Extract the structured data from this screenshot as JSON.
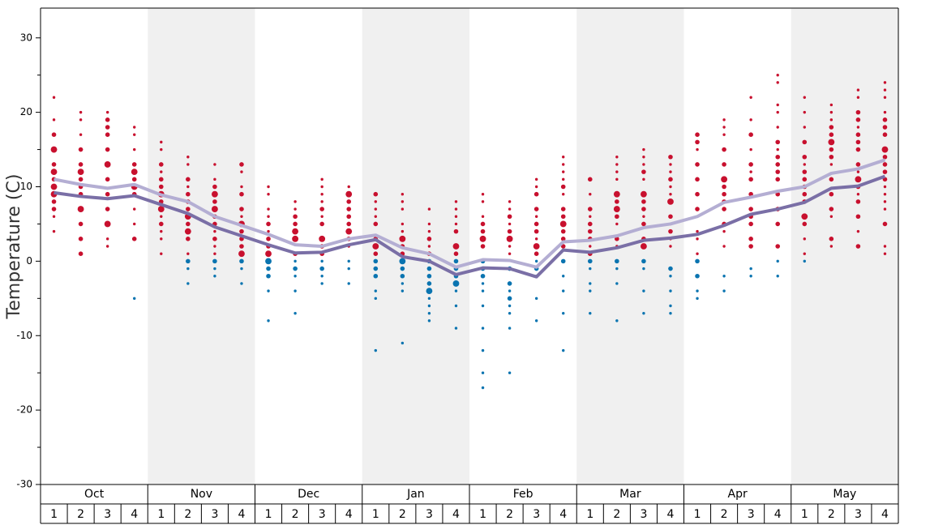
{
  "chart_data": {
    "type": "dot-distribution",
    "y_label": "Temperature (C)",
    "ylim": [
      -30,
      34
    ],
    "yticks": [
      -30,
      -20,
      -10,
      0,
      10,
      20,
      30
    ],
    "yticks_minor": [
      -25,
      -15,
      -5,
      5,
      15,
      25
    ],
    "months": [
      "Oct",
      "Nov",
      "Dec",
      "Jan",
      "Feb",
      "Mar",
      "Apr",
      "May"
    ],
    "weeks": [
      "1",
      "2",
      "3",
      "4"
    ],
    "shade_color": "#f0f0f0",
    "warm_color": "#c8102e",
    "cold_color": "#0a74b0",
    "lines": [
      {
        "color": "#b4aed3",
        "values": [
          11.0,
          10.3,
          9.8,
          10.3,
          8.9,
          8.0,
          6.0,
          4.8,
          3.6,
          2.2,
          2.0,
          3.0,
          3.5,
          1.8,
          1.0,
          -0.8,
          0.2,
          0.1,
          -0.8,
          2.6,
          2.8,
          3.4,
          4.5,
          5.0,
          6.0,
          7.9,
          8.6,
          9.4,
          10.0,
          11.8,
          12.4,
          13.6
        ]
      },
      {
        "color": "#7a6fa6",
        "values": [
          9.2,
          8.7,
          8.4,
          8.8,
          7.6,
          6.4,
          4.6,
          3.4,
          2.2,
          1.1,
          1.2,
          2.2,
          2.9,
          0.6,
          0.0,
          -1.8,
          -0.9,
          -1.0,
          -2.1,
          1.5,
          1.2,
          1.8,
          2.8,
          3.1,
          3.6,
          4.8,
          6.3,
          7.0,
          7.9,
          9.8,
          10.1,
          11.4
        ]
      }
    ],
    "dots": [
      {
        "temps": [
          22,
          19,
          17,
          15,
          13,
          12,
          11,
          10,
          9,
          8,
          7,
          6,
          4
        ],
        "sizes": [
          1,
          1,
          2,
          3,
          2,
          3,
          2,
          3,
          3,
          2,
          2,
          1,
          1
        ]
      },
      {
        "temps": [
          20,
          19,
          17,
          15,
          13,
          12,
          11,
          10,
          9,
          7,
          5,
          3,
          1
        ],
        "sizes": [
          1,
          1,
          1,
          2,
          2,
          3,
          2,
          2,
          2,
          3,
          2,
          2,
          2
        ]
      },
      {
        "temps": [
          20,
          19,
          18,
          17,
          15,
          13,
          11,
          9,
          7,
          5,
          3,
          2
        ],
        "sizes": [
          1,
          2,
          2,
          2,
          2,
          3,
          2,
          2,
          2,
          3,
          1,
          1
        ]
      },
      {
        "temps": [
          18,
          17,
          15,
          13,
          12,
          11,
          10,
          9,
          7,
          5,
          3,
          -5
        ],
        "sizes": [
          1,
          1,
          1,
          2,
          3,
          2,
          3,
          2,
          1,
          1,
          2,
          1
        ]
      },
      {
        "temps": [
          16,
          15,
          13,
          12,
          11,
          10,
          9,
          8,
          7,
          6,
          5,
          4,
          3,
          1
        ],
        "sizes": [
          1,
          1,
          2,
          1,
          2,
          2,
          3,
          2,
          3,
          1,
          2,
          1,
          1,
          1
        ]
      },
      {
        "temps": [
          14,
          13,
          11,
          10,
          9,
          8,
          7,
          6,
          5,
          4,
          3,
          1,
          0,
          -1,
          -3
        ],
        "sizes": [
          1,
          1,
          2,
          1,
          2,
          2,
          2,
          3,
          2,
          3,
          2,
          1,
          2,
          1,
          1
        ]
      },
      {
        "temps": [
          13,
          11,
          10,
          9,
          8,
          7,
          6,
          5,
          4,
          3,
          2,
          1,
          0,
          -1,
          -2
        ],
        "sizes": [
          1,
          1,
          2,
          3,
          2,
          3,
          2,
          2,
          1,
          2,
          1,
          1,
          2,
          1,
          1
        ]
      },
      {
        "temps": [
          13,
          12,
          10,
          9,
          7,
          6,
          5,
          4,
          3,
          2,
          1,
          0,
          -1,
          -3
        ],
        "sizes": [
          2,
          1,
          1,
          2,
          2,
          1,
          3,
          2,
          2,
          2,
          3,
          2,
          1,
          1
        ]
      },
      {
        "temps": [
          10,
          9,
          7,
          6,
          5,
          4,
          3,
          2,
          1,
          0,
          -1,
          -2,
          -4,
          -8
        ],
        "sizes": [
          1,
          1,
          1,
          1,
          2,
          1,
          2,
          2,
          3,
          3,
          2,
          2,
          1,
          1
        ]
      },
      {
        "temps": [
          8,
          7,
          6,
          5,
          4,
          3,
          1,
          0,
          -1,
          -2,
          -4,
          -7
        ],
        "sizes": [
          1,
          1,
          2,
          2,
          3,
          3,
          2,
          1,
          2,
          1,
          1,
          1
        ]
      },
      {
        "temps": [
          11,
          10,
          9,
          8,
          7,
          6,
          5,
          3,
          2,
          1,
          0,
          -1,
          -2,
          -3
        ],
        "sizes": [
          1,
          1,
          1,
          1,
          2,
          1,
          2,
          3,
          2,
          2,
          1,
          2,
          1,
          1
        ]
      },
      {
        "temps": [
          10,
          9,
          8,
          7,
          6,
          5,
          4,
          3,
          2,
          0,
          -1,
          -3
        ],
        "sizes": [
          1,
          3,
          2,
          2,
          2,
          2,
          3,
          2,
          1,
          1,
          1,
          1
        ]
      },
      {
        "temps": [
          9,
          8,
          7,
          6,
          5,
          3,
          2,
          1,
          0,
          -1,
          -2,
          -4,
          -5,
          -12
        ],
        "sizes": [
          2,
          1,
          1,
          1,
          2,
          2,
          3,
          2,
          2,
          2,
          2,
          1,
          1,
          1
        ]
      },
      {
        "temps": [
          9,
          8,
          7,
          5,
          4,
          3,
          2,
          1,
          0,
          -1,
          -2,
          -3,
          -4,
          -11
        ],
        "sizes": [
          1,
          1,
          1,
          1,
          1,
          3,
          2,
          2,
          3,
          2,
          2,
          1,
          1,
          1
        ]
      },
      {
        "temps": [
          7,
          5,
          4,
          3,
          2,
          1,
          0,
          -1,
          -2,
          -3,
          -4,
          -5,
          -6,
          -7,
          -8
        ],
        "sizes": [
          1,
          1,
          1,
          2,
          1,
          2,
          2,
          2,
          2,
          2,
          3,
          1,
          1,
          1,
          1
        ]
      },
      {
        "temps": [
          8,
          7,
          6,
          5,
          4,
          2,
          1,
          0,
          -1,
          -2,
          -3,
          -4,
          -6,
          -9
        ],
        "sizes": [
          1,
          1,
          1,
          1,
          2,
          3,
          2,
          2,
          2,
          2,
          3,
          1,
          1,
          1
        ]
      },
      {
        "temps": [
          9,
          8,
          6,
          5,
          4,
          3,
          2,
          0,
          -1,
          -2,
          -3,
          -4,
          -6,
          -9,
          -12,
          -15,
          -17
        ],
        "sizes": [
          1,
          1,
          1,
          2,
          2,
          3,
          2,
          2,
          2,
          2,
          1,
          1,
          1,
          1,
          1,
          1,
          1
        ]
      },
      {
        "temps": [
          8,
          7,
          6,
          5,
          4,
          3,
          2,
          1,
          -1,
          -3,
          -4,
          -5,
          -6,
          -7,
          -9,
          -15
        ],
        "sizes": [
          1,
          1,
          2,
          1,
          2,
          3,
          1,
          1,
          2,
          2,
          1,
          2,
          1,
          1,
          1,
          1
        ]
      },
      {
        "temps": [
          11,
          10,
          9,
          7,
          6,
          5,
          4,
          3,
          2,
          1,
          0,
          -1,
          -2,
          -5,
          -8
        ],
        "sizes": [
          1,
          1,
          2,
          2,
          1,
          2,
          2,
          1,
          3,
          2,
          1,
          2,
          1,
          1,
          1
        ]
      },
      {
        "temps": [
          14,
          13,
          12,
          11,
          10,
          9,
          7,
          6,
          5,
          4,
          3,
          2,
          0,
          -2,
          -4,
          -7,
          -12
        ],
        "sizes": [
          1,
          1,
          1,
          1,
          2,
          1,
          2,
          2,
          3,
          2,
          2,
          2,
          2,
          1,
          1,
          1,
          1
        ]
      },
      {
        "temps": [
          11,
          9,
          7,
          6,
          5,
          4,
          3,
          2,
          1,
          0,
          -1,
          -3,
          -4,
          -7
        ],
        "sizes": [
          2,
          1,
          2,
          1,
          2,
          2,
          2,
          1,
          2,
          2,
          1,
          1,
          1,
          1
        ]
      },
      {
        "temps": [
          14,
          13,
          12,
          11,
          9,
          8,
          7,
          6,
          5,
          3,
          2,
          0,
          -1,
          -3,
          -8
        ],
        "sizes": [
          1,
          1,
          1,
          1,
          3,
          2,
          3,
          2,
          1,
          2,
          1,
          2,
          1,
          1,
          1
        ]
      },
      {
        "temps": [
          15,
          14,
          13,
          12,
          11,
          9,
          8,
          7,
          6,
          5,
          3,
          2,
          0,
          -1,
          -4,
          -7
        ],
        "sizes": [
          1,
          1,
          1,
          2,
          1,
          3,
          2,
          2,
          1,
          2,
          2,
          3,
          2,
          1,
          1,
          1
        ]
      },
      {
        "temps": [
          14,
          13,
          12,
          11,
          10,
          9,
          8,
          6,
          5,
          4,
          3,
          2,
          -1,
          -2,
          -4,
          -6,
          -7
        ],
        "sizes": [
          2,
          1,
          1,
          2,
          1,
          1,
          3,
          2,
          1,
          2,
          1,
          1,
          2,
          1,
          1,
          1,
          1
        ]
      },
      {
        "temps": [
          17,
          16,
          15,
          13,
          11,
          9,
          7,
          6,
          4,
          3,
          1,
          0,
          -2,
          -4,
          -5
        ],
        "sizes": [
          2,
          2,
          1,
          2,
          2,
          2,
          2,
          1,
          1,
          1,
          1,
          2,
          2,
          1,
          1
        ]
      },
      {
        "temps": [
          19,
          18,
          17,
          15,
          13,
          11,
          10,
          9,
          8,
          7,
          5,
          4,
          2,
          -2,
          -4
        ],
        "sizes": [
          1,
          1,
          1,
          2,
          2,
          3,
          2,
          2,
          2,
          2,
          2,
          1,
          1,
          1,
          1
        ]
      },
      {
        "temps": [
          22,
          19,
          17,
          15,
          13,
          12,
          11,
          9,
          7,
          6,
          5,
          3,
          2,
          -1,
          -2
        ],
        "sizes": [
          1,
          1,
          2,
          1,
          2,
          1,
          2,
          2,
          2,
          2,
          2,
          2,
          2,
          1,
          1
        ]
      },
      {
        "temps": [
          25,
          24,
          21,
          20,
          18,
          16,
          15,
          14,
          13,
          12,
          11,
          9,
          7,
          5,
          2,
          0,
          -2
        ],
        "sizes": [
          1,
          1,
          1,
          1,
          1,
          2,
          1,
          2,
          2,
          2,
          2,
          2,
          2,
          2,
          2,
          1,
          1
        ]
      },
      {
        "temps": [
          22,
          20,
          18,
          16,
          14,
          13,
          12,
          11,
          10,
          9,
          8,
          6,
          5,
          3,
          1,
          0
        ],
        "sizes": [
          1,
          1,
          1,
          2,
          2,
          1,
          2,
          2,
          2,
          2,
          2,
          3,
          2,
          1,
          1,
          1
        ]
      },
      {
        "temps": [
          21,
          20,
          19,
          18,
          17,
          16,
          15,
          14,
          13,
          11,
          9,
          7,
          6,
          3,
          2
        ],
        "sizes": [
          1,
          1,
          1,
          2,
          2,
          3,
          2,
          2,
          1,
          2,
          2,
          2,
          1,
          2,
          1
        ]
      },
      {
        "temps": [
          23,
          22,
          20,
          19,
          18,
          17,
          16,
          15,
          13,
          12,
          11,
          10,
          9,
          8,
          6,
          4,
          2
        ],
        "sizes": [
          1,
          1,
          2,
          2,
          1,
          2,
          2,
          2,
          2,
          1,
          3,
          2,
          1,
          2,
          2,
          1,
          2
        ]
      },
      {
        "temps": [
          24,
          23,
          22,
          20,
          19,
          18,
          17,
          15,
          14,
          13,
          12,
          11,
          10,
          9,
          8,
          7,
          5,
          2,
          1
        ],
        "sizes": [
          1,
          1,
          1,
          1,
          2,
          2,
          2,
          3,
          2,
          2,
          2,
          2,
          1,
          1,
          1,
          1,
          2,
          1,
          1
        ]
      }
    ]
  }
}
